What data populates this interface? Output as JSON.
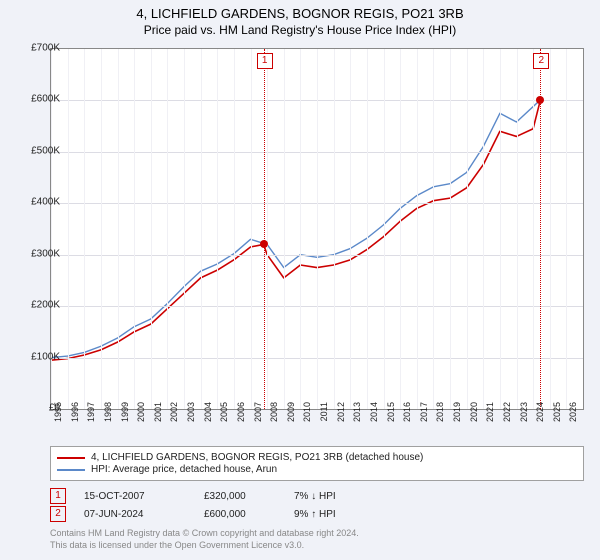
{
  "title": {
    "line1": "4, LICHFIELD GARDENS, BOGNOR REGIS, PO21 3RB",
    "line2": "Price paid vs. HM Land Registry's House Price Index (HPI)"
  },
  "chart": {
    "type": "line",
    "background_color": "#ffffff",
    "panel_color": "#f0f2f8",
    "grid_color": "#dcdce4",
    "axis_color": "#888888",
    "x_years": [
      1995,
      1996,
      1997,
      1998,
      1999,
      2000,
      2001,
      2002,
      2003,
      2004,
      2005,
      2006,
      2007,
      2008,
      2009,
      2010,
      2011,
      2012,
      2013,
      2014,
      2015,
      2016,
      2017,
      2018,
      2019,
      2020,
      2021,
      2022,
      2023,
      2024,
      2025,
      2026
    ],
    "xlim": [
      1995,
      2027
    ],
    "ylim": [
      0,
      700000
    ],
    "ytick_step": 100000,
    "ytick_labels": [
      "£0",
      "£100K",
      "£200K",
      "£300K",
      "£400K",
      "£500K",
      "£600K",
      "£700K"
    ],
    "series": [
      {
        "name": "price_paid",
        "color": "#cc0000",
        "width": 1.6,
        "points": [
          [
            1995,
            95000
          ],
          [
            1996,
            98000
          ],
          [
            1997,
            105000
          ],
          [
            1998,
            115000
          ],
          [
            1999,
            130000
          ],
          [
            2000,
            150000
          ],
          [
            2001,
            165000
          ],
          [
            2002,
            195000
          ],
          [
            2003,
            225000
          ],
          [
            2004,
            255000
          ],
          [
            2005,
            270000
          ],
          [
            2006,
            290000
          ],
          [
            2007,
            315000
          ],
          [
            2007.79,
            320000
          ],
          [
            2008,
            300000
          ],
          [
            2009,
            255000
          ],
          [
            2010,
            280000
          ],
          [
            2011,
            275000
          ],
          [
            2012,
            280000
          ],
          [
            2013,
            290000
          ],
          [
            2014,
            310000
          ],
          [
            2015,
            335000
          ],
          [
            2016,
            365000
          ],
          [
            2017,
            390000
          ],
          [
            2018,
            405000
          ],
          [
            2019,
            410000
          ],
          [
            2020,
            430000
          ],
          [
            2021,
            475000
          ],
          [
            2022,
            540000
          ],
          [
            2023,
            530000
          ],
          [
            2024,
            545000
          ],
          [
            2024.43,
            600000
          ]
        ]
      },
      {
        "name": "hpi",
        "color": "#5b89c9",
        "width": 1.4,
        "points": [
          [
            1995,
            100000
          ],
          [
            1996,
            103000
          ],
          [
            1997,
            110000
          ],
          [
            1998,
            122000
          ],
          [
            1999,
            138000
          ],
          [
            2000,
            160000
          ],
          [
            2001,
            175000
          ],
          [
            2002,
            205000
          ],
          [
            2003,
            238000
          ],
          [
            2004,
            268000
          ],
          [
            2005,
            282000
          ],
          [
            2006,
            302000
          ],
          [
            2007,
            330000
          ],
          [
            2008,
            320000
          ],
          [
            2009,
            275000
          ],
          [
            2010,
            300000
          ],
          [
            2011,
            295000
          ],
          [
            2012,
            300000
          ],
          [
            2013,
            312000
          ],
          [
            2014,
            332000
          ],
          [
            2015,
            358000
          ],
          [
            2016,
            390000
          ],
          [
            2017,
            415000
          ],
          [
            2018,
            432000
          ],
          [
            2019,
            438000
          ],
          [
            2020,
            460000
          ],
          [
            2021,
            510000
          ],
          [
            2022,
            575000
          ],
          [
            2023,
            558000
          ],
          [
            2024.4,
            600000
          ]
        ]
      }
    ],
    "markers": [
      {
        "id": "1",
        "year": 2007.79,
        "price": 320000
      },
      {
        "id": "2",
        "year": 2024.43,
        "price": 600000
      }
    ]
  },
  "legend": {
    "items": [
      {
        "color": "#cc0000",
        "label": "4, LICHFIELD GARDENS, BOGNOR REGIS, PO21 3RB (detached house)"
      },
      {
        "color": "#5b89c9",
        "label": "HPI: Average price, detached house, Arun"
      }
    ]
  },
  "sales": [
    {
      "id": "1",
      "date": "15-OCT-2007",
      "price": "£320,000",
      "delta": "7%",
      "dir": "↓",
      "ref": "HPI"
    },
    {
      "id": "2",
      "date": "07-JUN-2024",
      "price": "£600,000",
      "delta": "9%",
      "dir": "↑",
      "ref": "HPI"
    }
  ],
  "footer": {
    "line1": "Contains HM Land Registry data © Crown copyright and database right 2024.",
    "line2": "This data is licensed under the Open Government Licence v3.0."
  }
}
